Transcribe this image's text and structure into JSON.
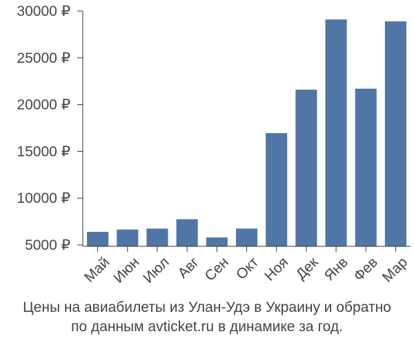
{
  "chart_data": {
    "type": "bar",
    "categories": [
      "Май",
      "Июн",
      "Июл",
      "Авг",
      "Сен",
      "Окт",
      "Ноя",
      "Дек",
      "Янв",
      "Фев",
      "Мар"
    ],
    "values": [
      6400,
      6650,
      6750,
      7750,
      5800,
      6750,
      16950,
      21600,
      29100,
      21700,
      28900
    ],
    "ylim": [
      5000,
      30000
    ],
    "yticks": [
      5000,
      10000,
      15000,
      20000,
      25000,
      30000
    ],
    "ytick_labels": [
      "5000 ₽",
      "10000 ₽",
      "15000 ₽",
      "20000 ₽",
      "25000 ₽",
      "30000 ₽"
    ],
    "bar_color": "#4f76a5",
    "grid": false,
    "caption_lines": [
      "Цены на авиабилеты из Улан-Удэ в Украину и обратно",
      "по данным avticket.ru в динамике за год."
    ]
  }
}
